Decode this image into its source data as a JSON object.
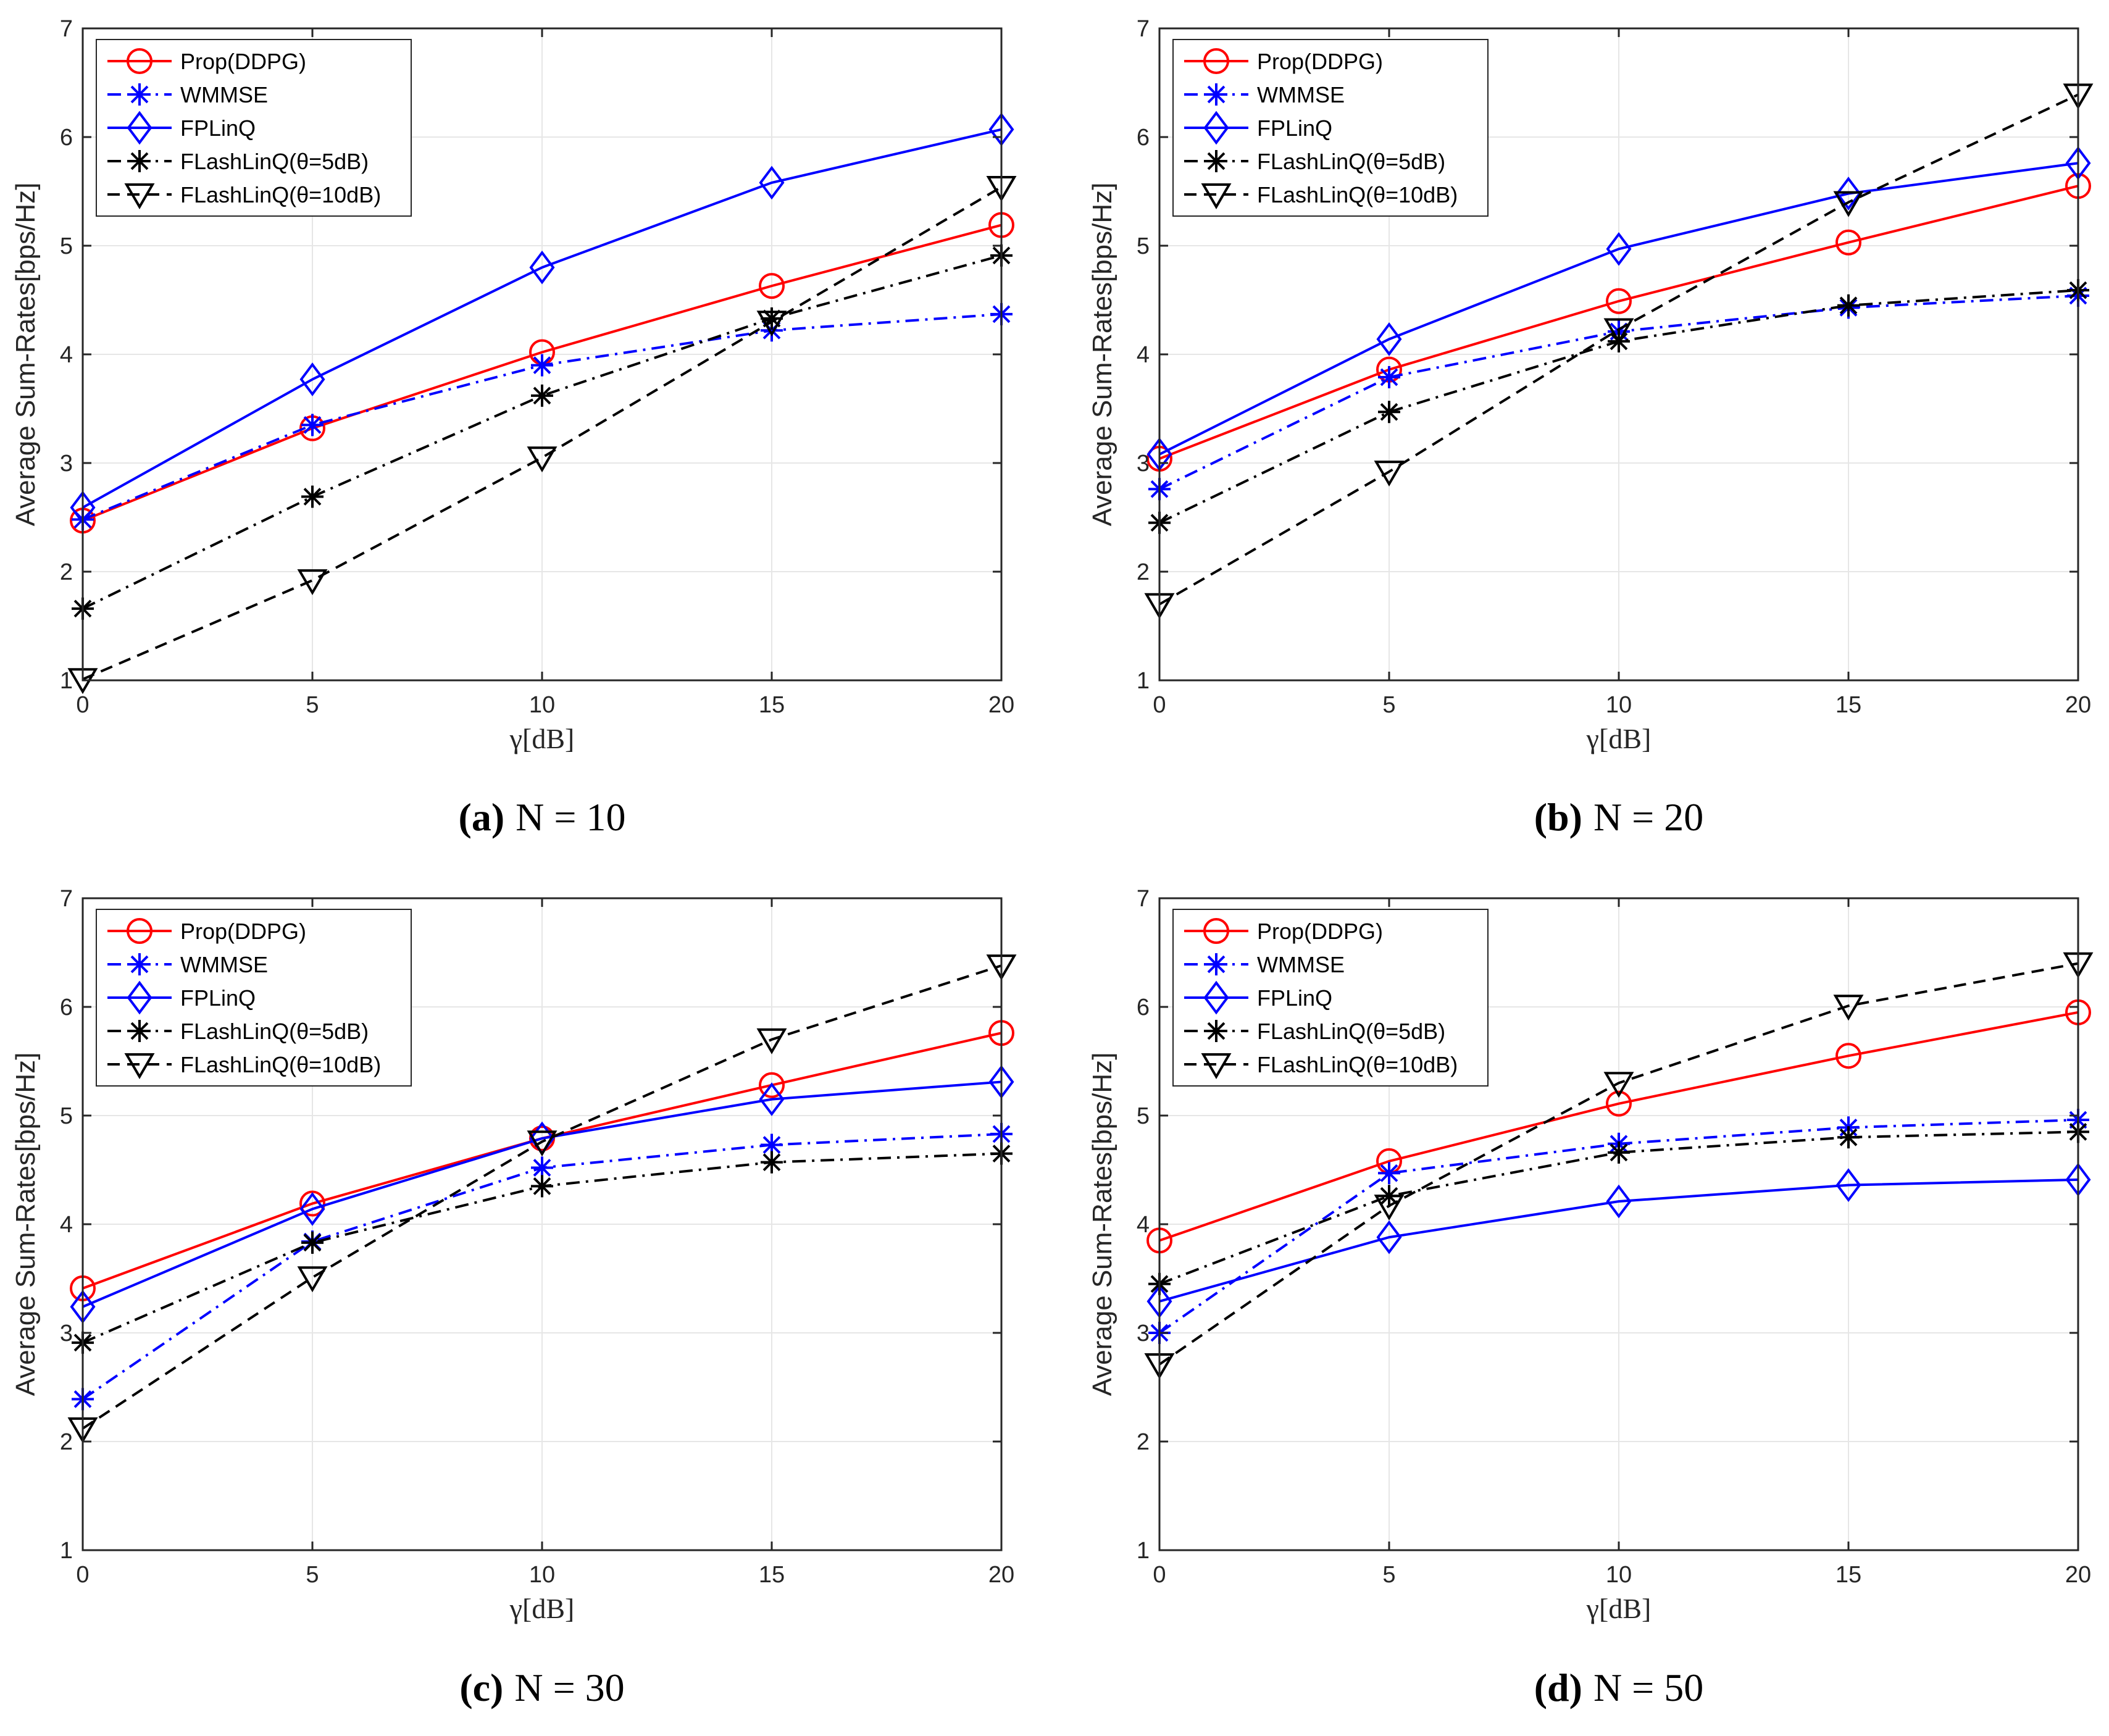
{
  "colors": {
    "prop": "#ff0000",
    "wmmse": "#0000ff",
    "fplinq": "#0000ff",
    "flash5": "#000000",
    "flash10": "#000000",
    "grid": "#e6e6e6",
    "axis": "#262626"
  },
  "legend_labels": [
    "Prop(DDPG)",
    "WMMSE",
    "FPLinQ",
    "FLashLinQ(θ=5dB)",
    "FLashLinQ(θ=10dB)"
  ],
  "chart_data": [
    {
      "type": "line",
      "caption_tag": "(a)",
      "caption_eq": "N = 10",
      "xlabel": "γ[dB]",
      "ylabel": "Average Sum-Rates[bps/Hz]",
      "x": [
        0,
        5,
        10,
        15,
        20
      ],
      "xticks": [
        "0",
        "5",
        "10",
        "15",
        "20"
      ],
      "yticks": [
        "1",
        "2",
        "3",
        "4",
        "5",
        "6",
        "7"
      ],
      "xlim": [
        0,
        20
      ],
      "ylim": [
        1,
        7
      ],
      "grid": true,
      "legend_position": "top-left",
      "series": [
        {
          "name": "Prop(DDPG)",
          "values": [
            2.47,
            3.32,
            4.02,
            4.63,
            5.19
          ]
        },
        {
          "name": "WMMSE",
          "values": [
            2.48,
            3.35,
            3.9,
            4.22,
            4.37
          ]
        },
        {
          "name": "FPLinQ",
          "values": [
            2.59,
            3.77,
            4.8,
            5.58,
            6.07
          ]
        },
        {
          "name": "FLashLinQ(θ=5dB)",
          "values": [
            1.66,
            2.69,
            3.62,
            4.33,
            4.91
          ]
        },
        {
          "name": "FLashLinQ(θ=10dB)",
          "values": [
            1.01,
            1.92,
            3.05,
            4.3,
            5.54
          ]
        }
      ]
    },
    {
      "type": "line",
      "caption_tag": "(b)",
      "caption_eq": "N = 20",
      "xlabel": "γ[dB]",
      "ylabel": "Average Sum-Rates[bps/Hz]",
      "x": [
        0,
        5,
        10,
        15,
        20
      ],
      "xticks": [
        "0",
        "5",
        "10",
        "15",
        "20"
      ],
      "yticks": [
        "1",
        "2",
        "3",
        "4",
        "5",
        "6",
        "7"
      ],
      "xlim": [
        0,
        20
      ],
      "ylim": [
        1,
        7
      ],
      "grid": true,
      "legend_position": "top-left",
      "series": [
        {
          "name": "Prop(DDPG)",
          "values": [
            3.04,
            3.86,
            4.49,
            5.03,
            5.55
          ]
        },
        {
          "name": "WMMSE",
          "values": [
            2.76,
            3.79,
            4.21,
            4.43,
            4.54
          ]
        },
        {
          "name": "FPLinQ",
          "values": [
            3.08,
            4.14,
            4.97,
            5.48,
            5.76
          ]
        },
        {
          "name": "FLashLinQ(θ=5dB)",
          "values": [
            2.45,
            3.47,
            4.12,
            4.45,
            4.59
          ]
        },
        {
          "name": "FLashLinQ(θ=10dB)",
          "values": [
            1.7,
            2.92,
            4.23,
            5.4,
            6.39
          ]
        }
      ]
    },
    {
      "type": "line",
      "caption_tag": "(c)",
      "caption_eq": "N = 30",
      "xlabel": "γ[dB]",
      "ylabel": "Average Sum-Rates[bps/Hz]",
      "x": [
        0,
        5,
        10,
        15,
        20
      ],
      "xticks": [
        "0",
        "5",
        "10",
        "15",
        "20"
      ],
      "yticks": [
        "1",
        "2",
        "3",
        "4",
        "5",
        "6",
        "7"
      ],
      "xlim": [
        0,
        20
      ],
      "ylim": [
        1,
        7
      ],
      "grid": true,
      "legend_position": "top-left",
      "series": [
        {
          "name": "Prop(DDPG)",
          "values": [
            3.41,
            4.19,
            4.79,
            5.28,
            5.76
          ]
        },
        {
          "name": "WMMSE",
          "values": [
            2.39,
            3.84,
            4.52,
            4.73,
            4.83
          ]
        },
        {
          "name": "FPLinQ",
          "values": [
            3.24,
            4.14,
            4.79,
            5.15,
            5.31
          ]
        },
        {
          "name": "FLashLinQ(θ=5dB)",
          "values": [
            2.91,
            3.83,
            4.35,
            4.57,
            4.65
          ]
        },
        {
          "name": "FLashLinQ(θ=10dB)",
          "values": [
            2.12,
            3.51,
            4.76,
            5.7,
            6.38
          ]
        }
      ]
    },
    {
      "type": "line",
      "caption_tag": "(d)",
      "caption_eq": "N = 50",
      "xlabel": "γ[dB]",
      "ylabel": "Average Sum-Rates[bps/Hz]",
      "x": [
        0,
        5,
        10,
        15,
        20
      ],
      "xticks": [
        "0",
        "5",
        "10",
        "15",
        "20"
      ],
      "yticks": [
        "1",
        "2",
        "3",
        "4",
        "5",
        "6",
        "7"
      ],
      "xlim": [
        0,
        20
      ],
      "ylim": [
        1,
        7
      ],
      "grid": true,
      "legend_position": "top-left",
      "series": [
        {
          "name": "Prop(DDPG)",
          "values": [
            3.85,
            4.58,
            5.11,
            5.55,
            5.95
          ]
        },
        {
          "name": "WMMSE",
          "values": [
            3.0,
            4.47,
            4.74,
            4.89,
            4.96
          ]
        },
        {
          "name": "FPLinQ",
          "values": [
            3.29,
            3.88,
            4.21,
            4.36,
            4.41
          ]
        },
        {
          "name": "FLashLinQ(θ=5dB)",
          "values": [
            3.45,
            4.26,
            4.66,
            4.8,
            4.85
          ]
        },
        {
          "name": "FLashLinQ(θ=10dB)",
          "values": [
            2.71,
            4.17,
            5.3,
            6.01,
            6.4
          ]
        }
      ]
    }
  ]
}
